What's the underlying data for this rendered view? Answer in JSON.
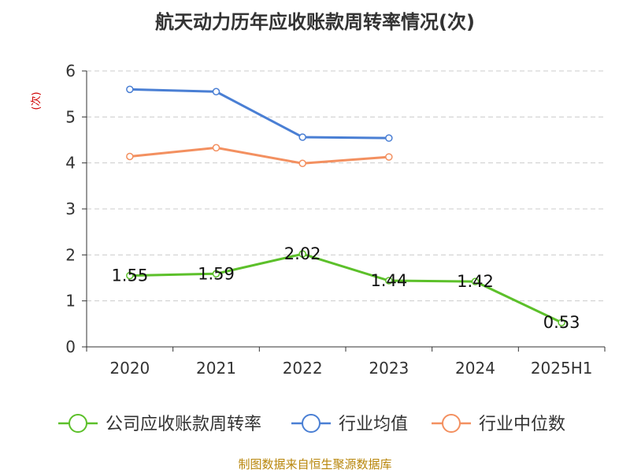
{
  "chart_data": {
    "type": "line",
    "title": "航天动力历年应收账款周转率情况(次)",
    "ylabel": "(次)",
    "xlabel": "",
    "categories": [
      "2020",
      "2021",
      "2022",
      "2023",
      "2024",
      "2025H1"
    ],
    "ylim": [
      0,
      6
    ],
    "yticks": [
      0,
      1,
      2,
      3,
      4,
      5,
      6
    ],
    "grid": true,
    "legend_position": "bottom",
    "series": [
      {
        "name": "公司应收账款周转率",
        "color": "#5cc02a",
        "values": [
          1.55,
          1.59,
          2.02,
          1.44,
          1.42,
          0.53
        ],
        "labels": [
          "1.55",
          "1.59",
          "2.02",
          "1.44",
          "1.42",
          "0.53"
        ]
      },
      {
        "name": "行业均值",
        "color": "#4a7fd4",
        "values": [
          5.6,
          5.55,
          4.56,
          4.54,
          null,
          null
        ]
      },
      {
        "name": "行业中位数",
        "color": "#f39060",
        "values": [
          4.14,
          4.33,
          3.99,
          4.13,
          null,
          null
        ]
      }
    ],
    "source": "制图数据来自恒生聚源数据库"
  }
}
